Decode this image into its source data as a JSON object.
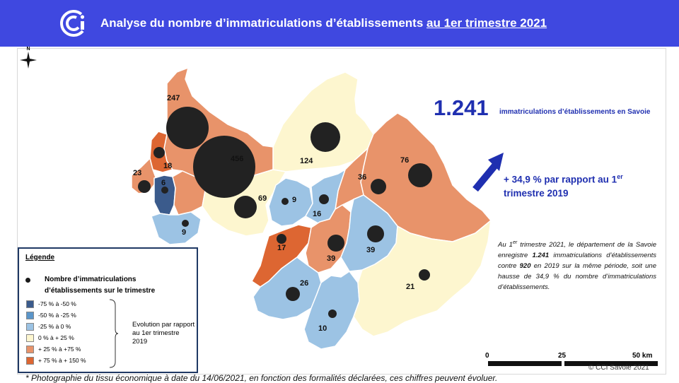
{
  "header": {
    "title_main": "Analyse du nombre d’immatriculations d’établissements ",
    "title_underlined": "au 1er trimestre 2021",
    "bg_color": "#3f48e0"
  },
  "north_label": "N",
  "headline": {
    "value": "1.241",
    "label": "immatriculations d’établissements en Savoie"
  },
  "evolution": {
    "line1": "+ 34,9 % par rapport au 1",
    "sup": "er",
    "line2": "trimestre 2019"
  },
  "note": {
    "p1": "Au 1",
    "sup": "er",
    "p2": " trimestre 2021, le département de la Savoie enregistre ",
    "b1": "1.241",
    "p3": " immatriculations d’établissements contre ",
    "b2": "920",
    "p4": " en 2019 sur la même période, soit une hausse de 34,9 % du nombre d’immatriculations d’établissements."
  },
  "legend": {
    "title": "Légende",
    "dot_label": "Nombre d’immatriculations d’établissements sur le trimestre",
    "classes": [
      {
        "label": "-75 % à  -50 %",
        "color": "#3b5b8c"
      },
      {
        "label": "-50 % à -25 %",
        "color": "#5b95c9"
      },
      {
        "label": "-25 % à 0 %",
        "color": "#9cc3e4"
      },
      {
        "label": "0 % à + 25 %",
        "color": "#fdf6cf"
      },
      {
        "label": "+ 25 % à +75 %",
        "color": "#e8936a"
      },
      {
        "label": "+ 75 % à + 150 %",
        "color": "#dd6632"
      }
    ],
    "side_label": "Evolution par rapport au 1er trimestre 2019"
  },
  "map_values": [
    "247",
    "456",
    "124",
    "23",
    "18",
    "6",
    "69",
    "9",
    "16",
    "36",
    "76",
    "9",
    "17",
    "39",
    "39",
    "26",
    "10",
    "21"
  ],
  "scale": {
    "l0": "0",
    "l1": "25",
    "l2": "50 km"
  },
  "copyright": "© CCI Savoie 2021",
  "footnote": "* Photographie du tissu économique à date du 14/06/2021, en fonction des formalités déclarées, ces chiffres peuvent évoluer."
}
